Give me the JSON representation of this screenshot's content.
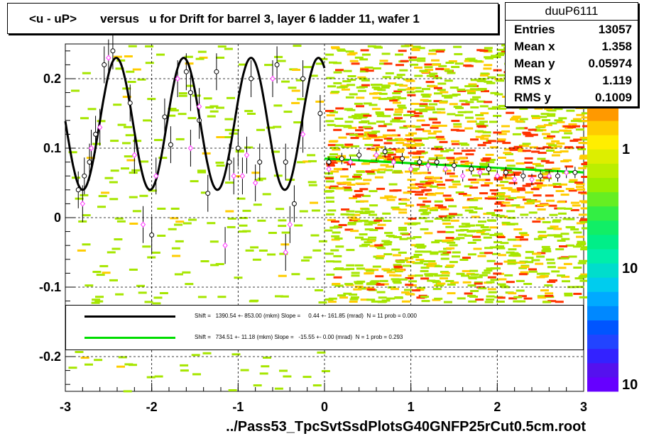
{
  "title": "<u - uP>       versus   u for Drift for barrel 3, layer 6 ladder 11, wafer 1",
  "footer": "../Pass53_TpcSvtSsdPlotsG40GNFP25rCut0.5cm.root",
  "stats": {
    "name": "duuP6111",
    "rows": [
      {
        "k": "Entries",
        "v": "13057"
      },
      {
        "k": "Mean x",
        "v": "1.358"
      },
      {
        "k": "Mean y",
        "v": "0.05974"
      },
      {
        "k": "RMS x",
        "v": "1.119"
      },
      {
        "k": "RMS y",
        "v": "0.1009"
      }
    ]
  },
  "legend": {
    "black": "Shift =   1390.54 +- 853.00 (mkm) Slope =     0.44 +- 161.85 (mrad)  N = 11 prob = 0.000",
    "green": "Shift =   734.51 +- 11.18 (mkm) Slope =   -15.55 +- 0.00 (mrad)  N = 1 prob = 0.293"
  },
  "colors": {
    "fit_black": "#000000",
    "fit_green": "#00dd00",
    "profile_pink": "#ff33ff",
    "density_low": "#a6e600",
    "density_mid": "#ffcc00",
    "density_high": "#ff3300"
  },
  "chart_data": {
    "type": "scatter",
    "title": "<u - uP>       versus   u for Drift for barrel 3, layer 6 ladder 11, wafer 1",
    "xlim": [
      -3,
      3
    ],
    "ylim": [
      -0.25,
      0.25
    ],
    "x_ticks": [
      "-3",
      "-2",
      "-1",
      "0",
      "1",
      "2",
      "3"
    ],
    "y_ticks": [
      "-0.2",
      "-0.1",
      "0",
      "0.1",
      "0.2"
    ],
    "colorbar_labels": [
      "1",
      "10",
      "10"
    ],
    "grid": true,
    "series": [
      {
        "marker": "open-circle",
        "x": [
          -2.85,
          -2.78,
          -2.72,
          -2.65,
          -2.55,
          -2.45,
          -2.25,
          -2.0,
          -1.85,
          -1.78,
          -1.6,
          -1.55,
          -1.45,
          -1.35,
          -1.25,
          -1.1,
          -1.0,
          -0.85,
          -0.75,
          -0.55,
          -0.45,
          -0.35,
          -0.25,
          -0.05,
          0.05,
          0.2,
          0.4,
          0.7,
          0.9,
          1.1,
          1.3,
          1.5,
          1.7,
          1.9,
          2.1,
          2.3,
          2.5,
          2.7,
          2.9
        ],
        "y": [
          0.04,
          0.06,
          0.08,
          0.12,
          0.22,
          0.24,
          0.165,
          -0.025,
          0.145,
          0.105,
          0.21,
          0.18,
          0.14,
          0.035,
          0.21,
          0.08,
          0.1,
          0.2,
          0.08,
          0.22,
          0.08,
          0.02,
          0.2,
          0.15,
          0.08,
          0.085,
          0.09,
          0.095,
          0.085,
          0.08,
          0.08,
          0.075,
          0.07,
          0.07,
          0.065,
          0.06,
          0.06,
          0.06,
          0.065
        ]
      },
      {
        "marker": "open-diamond",
        "x": [
          -2.8,
          -2.7,
          -2.6,
          -2.5,
          -2.2,
          -2.1,
          -1.95,
          -1.7,
          -1.55,
          -1.45,
          -1.15,
          -1.05,
          -0.95,
          -0.9,
          -0.8,
          -0.6,
          -0.45,
          -0.4,
          -0.25,
          0.05,
          0.3,
          0.6,
          0.8,
          1.0,
          1.2,
          1.4,
          1.6,
          1.8,
          2.0,
          2.2,
          2.4,
          2.6,
          2.8
        ],
        "y": [
          0.02,
          0.1,
          0.13,
          0.23,
          0.09,
          -0.01,
          0.06,
          0.2,
          0.1,
          0.16,
          -0.04,
          0.06,
          0.06,
          0.09,
          0.05,
          0.2,
          -0.05,
          -0.01,
          0.12,
          0.07,
          0.08,
          0.09,
          0.08,
          0.07,
          0.075,
          0.07,
          0.06,
          0.065,
          0.06,
          0.055,
          0.055,
          0.06,
          0.065
        ]
      }
    ],
    "fits": [
      {
        "color": "black",
        "x_range": [
          -3,
          0
        ]
      },
      {
        "color": "green",
        "x_range": [
          0,
          3
        ],
        "y_start": 0.085,
        "y_end": 0.065
      }
    ]
  }
}
